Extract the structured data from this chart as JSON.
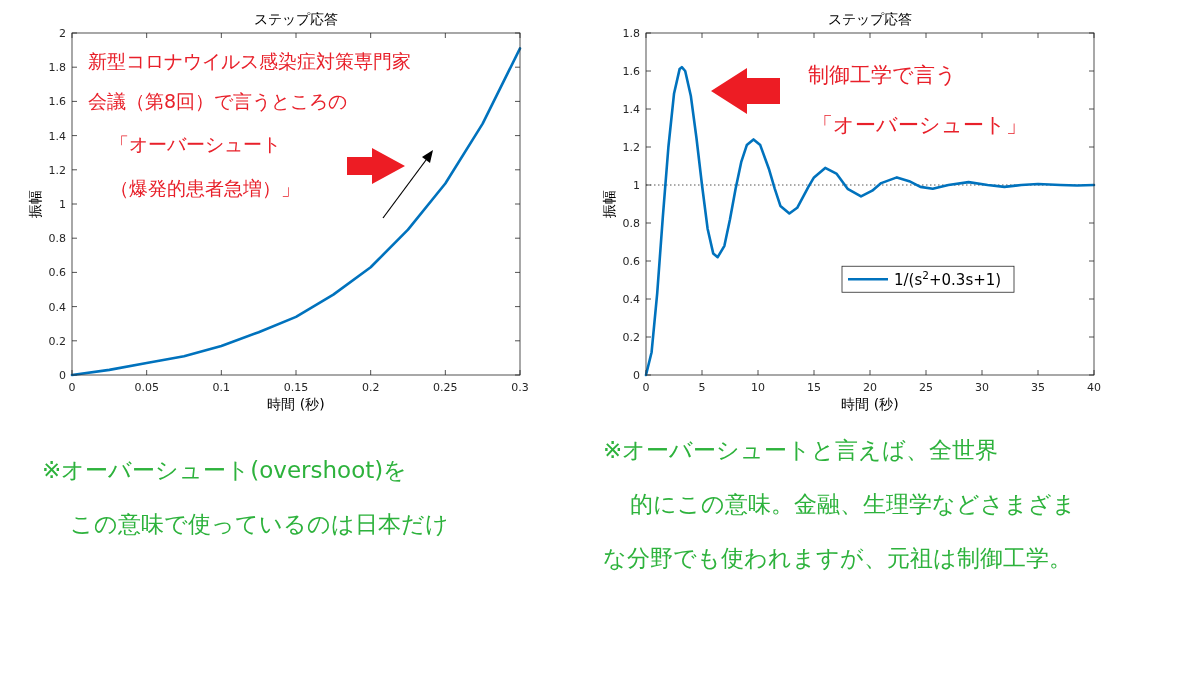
{
  "chart_data": [
    {
      "type": "line",
      "title": "ステップ応答",
      "xlabel": "時間 (秒)",
      "ylabel": "振幅",
      "xlim": [
        0,
        0.3
      ],
      "ylim": [
        0,
        2
      ],
      "xticks": [
        0,
        0.05,
        0.1,
        0.15,
        0.2,
        0.25,
        0.3
      ],
      "yticks": [
        0,
        0.2,
        0.4,
        0.6,
        0.8,
        1,
        1.2,
        1.4,
        1.6,
        1.8,
        2
      ],
      "x": [
        0,
        0.025,
        0.05,
        0.075,
        0.1,
        0.125,
        0.15,
        0.175,
        0.2,
        0.225,
        0.25,
        0.275,
        0.3
      ],
      "series": [
        {
          "color": "#0072bd",
          "values": [
            0,
            0.03,
            0.07,
            0.11,
            0.17,
            0.25,
            0.34,
            0.47,
            0.63,
            0.85,
            1.12,
            1.47,
            1.91
          ]
        }
      ],
      "annotations": [
        "新型コロナウイルス感染症対策専門家",
        "会議（第8回）で言うところの",
        "「オーバーシュート",
        "（爆発的患者急増）」",
        "※オーバーシュート(overshoot)を",
        "この意味で使っているのは日本だけ"
      ]
    },
    {
      "type": "line",
      "title": "ステップ応答",
      "xlabel": "時間 (秒)",
      "ylabel": "振幅",
      "xlim": [
        0,
        40
      ],
      "ylim": [
        0,
        1.8
      ],
      "xticks": [
        0,
        5,
        10,
        15,
        20,
        25,
        30,
        35,
        40
      ],
      "yticks": [
        0,
        0.2,
        0.4,
        0.6,
        0.8,
        1,
        1.2,
        1.4,
        1.6,
        1.8
      ],
      "legend": "right",
      "x": [
        0,
        0.5,
        1,
        1.5,
        2,
        2.5,
        3,
        3.2,
        3.5,
        4,
        4.5,
        5,
        5.5,
        6,
        6.4,
        7,
        7.5,
        8,
        8.5,
        9,
        9.6,
        10.2,
        11,
        11.5,
        12,
        12.8,
        13.5,
        14.5,
        15,
        16,
        17,
        18,
        19.2,
        20.2,
        21,
        22.4,
        23.5,
        24.5,
        25.6,
        27,
        28.8,
        30.5,
        32,
        33.5,
        35,
        37,
        38.5,
        40
      ],
      "series": [
        {
          "name": "1/(s$^{2}$+0.3s+1)",
          "color": "#0072bd",
          "values": [
            0,
            0.12,
            0.43,
            0.83,
            1.2,
            1.48,
            1.61,
            1.62,
            1.6,
            1.47,
            1.25,
            1.0,
            0.77,
            0.64,
            0.62,
            0.68,
            0.82,
            0.98,
            1.12,
            1.21,
            1.24,
            1.21,
            1.08,
            0.98,
            0.89,
            0.85,
            0.88,
            0.99,
            1.04,
            1.09,
            1.06,
            0.98,
            0.94,
            0.97,
            1.01,
            1.04,
            1.02,
            0.99,
            0.98,
            1.0,
            1.015,
            1.0,
            0.99,
            1.0,
            1.005,
            1.0,
            0.997,
            1.0
          ]
        }
      ],
      "ref_lines": [
        {
          "axis": "y",
          "value": 1,
          "color": "#555555",
          "line_style": "dotted"
        }
      ],
      "annotations": [
        "制御工学で言う",
        "「オーバーシュート」",
        "※オーバーシュートと言えば、全世界",
        "的にこの意味。金融、生理学などさまざま",
        "な分野でも使われますが、元祖は制御工学。"
      ]
    }
  ]
}
